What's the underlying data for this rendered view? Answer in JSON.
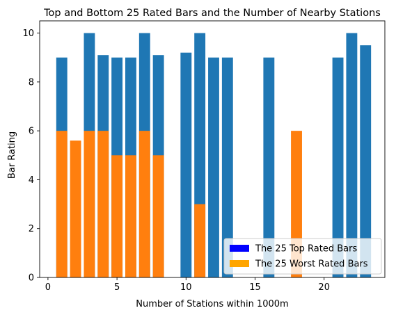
{
  "chart_data": {
    "type": "bar",
    "title": "Top and Bottom 25 Rated Bars and the Number of Nearby Stations",
    "xlabel": "Number of Stations within 1000m",
    "ylabel": "Bar Rating",
    "xlim": [
      -0.6,
      24.4
    ],
    "ylim": [
      0,
      10.5
    ],
    "xticks": [
      0,
      5,
      10,
      15,
      20
    ],
    "yticks": [
      0,
      2,
      4,
      6,
      8,
      10
    ],
    "grid": false,
    "legend_position": "lower-right",
    "series": [
      {
        "name": "The 25 Top Rated Bars",
        "legend_color": "#0000ff",
        "color": "#1f77b4",
        "x": [
          1,
          3,
          4,
          5,
          6,
          7,
          8,
          10,
          11,
          12,
          13,
          16,
          21,
          22,
          23
        ],
        "values": [
          9.0,
          10.0,
          9.1,
          9.0,
          9.0,
          10.0,
          9.1,
          9.2,
          10.0,
          9.0,
          9.0,
          9.0,
          9.0,
          10.0,
          9.5
        ]
      },
      {
        "name": "The 25 Worst Rated Bars",
        "legend_color": "#ffa500",
        "color": "#ff7f0e",
        "x": [
          1,
          2,
          3,
          4,
          5,
          6,
          7,
          8,
          11,
          18
        ],
        "values": [
          6.0,
          5.6,
          6.0,
          6.0,
          5.0,
          5.0,
          6.0,
          5.0,
          3.0,
          6.0
        ]
      }
    ]
  }
}
